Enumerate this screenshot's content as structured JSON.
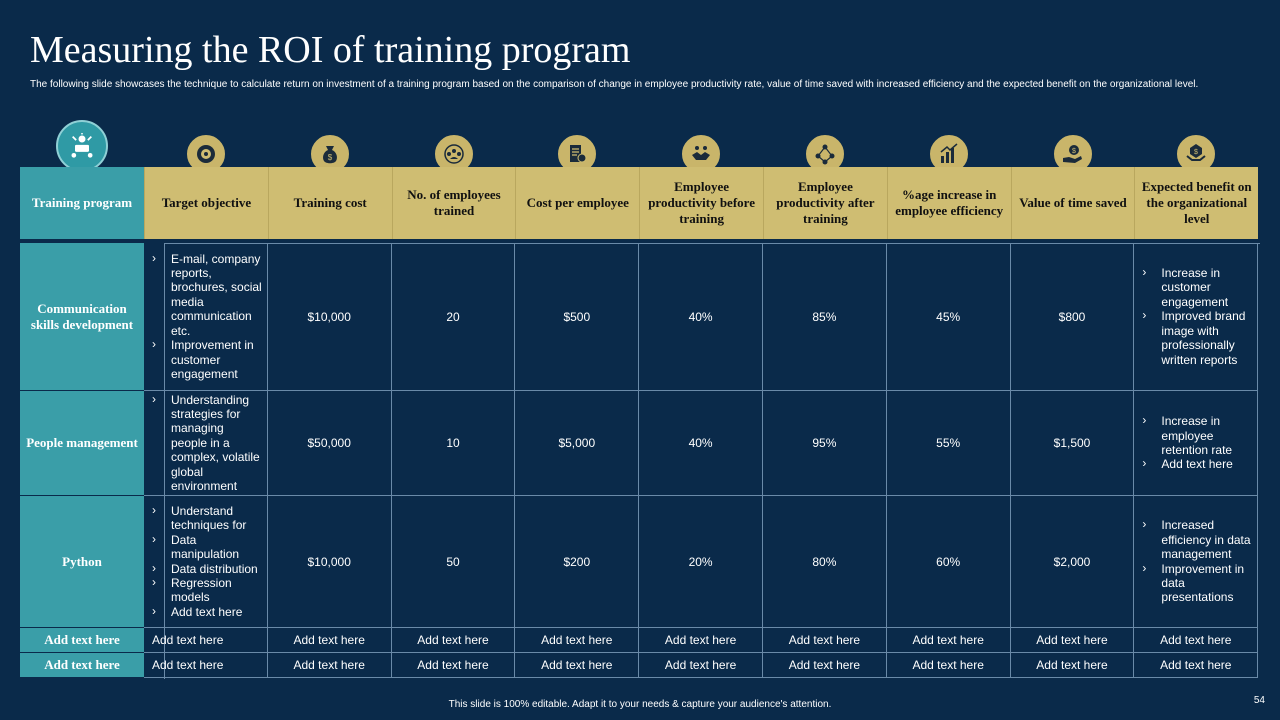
{
  "title": "Measuring the ROI of training program",
  "subtitle": "The following slide showcases the technique to calculate return on investment of a training program based on the comparison of change in employee productivity rate, value of time saved with increased efficiency and the expected benefit on the organizational level.",
  "headers": {
    "first": "Training program",
    "cols": [
      "Target objective",
      "Training cost",
      "No. of employees trained",
      "Cost per employee",
      "Employee productivity before training",
      "Employee productivity after training",
      "%age increase in employee efficiency",
      "Value of time saved",
      "Expected benefit on the organizational level"
    ]
  },
  "icons": [
    "training-icon",
    "target-icon",
    "money-bag-icon",
    "team-icon",
    "invoice-icon",
    "handshake-icon",
    "people-network-icon",
    "growth-chart-icon",
    "hand-dollar-icon",
    "benefit-icon"
  ],
  "rows": [
    {
      "label": "Communication skills development",
      "objective": [
        "E-mail, company reports, brochures, social media communication etc.",
        "Improvement in customer engagement"
      ],
      "values": [
        "$10,000",
        "20",
        "$500",
        "40%",
        "85%",
        "45%",
        "$800"
      ],
      "benefit": [
        "Increase in customer engagement",
        "Improved brand image with professionally written reports"
      ]
    },
    {
      "label": "People management",
      "objective": [
        "Understanding strategies for managing people in a complex, volatile global environment"
      ],
      "values": [
        "$50,000",
        "10",
        "$5,000",
        "40%",
        "95%",
        "55%",
        "$1,500"
      ],
      "benefit": [
        "Increase in employee retention rate",
        "Add text here"
      ]
    },
    {
      "label": "Python",
      "objective": [
        "Understand techniques for",
        "Data manipulation",
        "Data distribution",
        "Regression models",
        "Add text here"
      ],
      "values": [
        "$10,000",
        "50",
        "$200",
        "20%",
        "80%",
        "60%",
        "$2,000"
      ],
      "benefit": [
        "Increased efficiency in data management",
        "Improvement in data presentations"
      ]
    }
  ],
  "extra_rows": [
    {
      "label": "Add text here",
      "cells": [
        "Add text here",
        "Add text here",
        "Add text here",
        "Add text here",
        "Add text here",
        "Add text here",
        "Add text here",
        "Add text here",
        "Add text here"
      ]
    },
    {
      "label": "Add text here",
      "cells": [
        "Add text here",
        "Add text here",
        "Add text here",
        "Add text here",
        "Add text here",
        "Add text here",
        "Add text here",
        "Add text here",
        "Add text here"
      ]
    }
  ],
  "footer": "This slide is 100% editable. Adapt it to your needs & capture your audience's attention.",
  "page_number": "54",
  "colors": {
    "background": "#0a2a4a",
    "gold": "#cfbd72",
    "teal": "#3a9ea8"
  }
}
